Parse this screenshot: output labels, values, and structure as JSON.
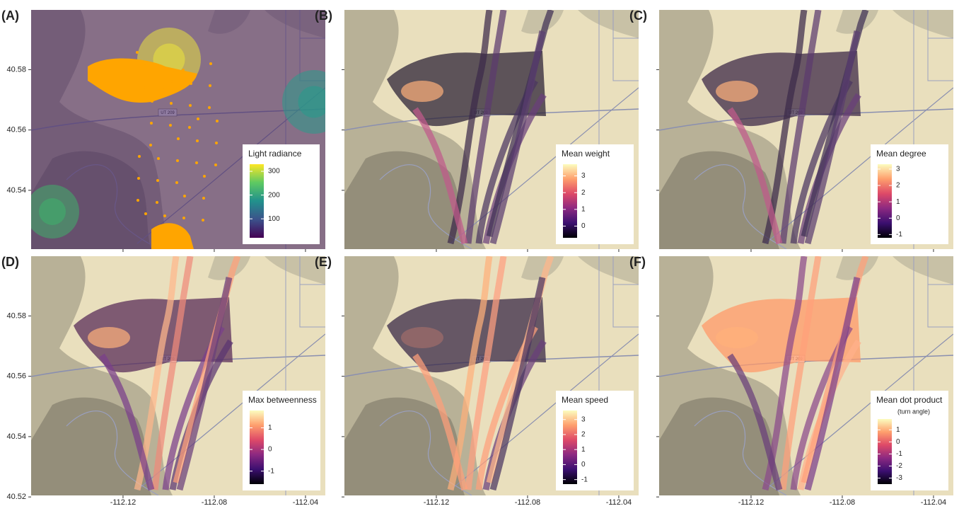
{
  "map": {
    "xlim": [
      -112.1603,
      -112.0313
    ],
    "ylim": [
      40.5205,
      40.5998
    ],
    "xticks": [
      -112.12,
      -112.08,
      -112.04
    ],
    "yticks_top": [
      40.54,
      40.56,
      40.58
    ],
    "yticks_bottom": [
      40.52,
      40.54,
      40.56,
      40.58
    ],
    "road_label": "UT 209"
  },
  "panels": [
    {
      "label": "(A)",
      "legend": {
        "title": "Light radiance",
        "lim": [
          20,
          330
        ],
        "ticks": [
          100,
          200,
          300
        ],
        "colors": [
          "#440154",
          "#3b528b",
          "#21918c",
          "#5ec962",
          "#fde725"
        ]
      }
    },
    {
      "label": "(B)",
      "legend": {
        "title": "Mean weight",
        "lim": [
          -0.7,
          3.7
        ],
        "ticks": [
          0,
          1,
          2,
          3
        ],
        "colors": [
          "#000004",
          "#3b0f70",
          "#8c2981",
          "#de4968",
          "#fe9f6d",
          "#fcfdbf"
        ]
      }
    },
    {
      "label": "(C)",
      "legend": {
        "title": "Mean degree",
        "lim": [
          -1.2,
          3.3
        ],
        "ticks": [
          -1,
          0,
          1,
          2,
          3
        ],
        "colors": [
          "#000004",
          "#3b0f70",
          "#8c2981",
          "#de4968",
          "#fe9f6d",
          "#fcfdbf"
        ]
      }
    },
    {
      "label": "(D)",
      "legend": {
        "title": "Max betweenness",
        "lim": [
          -1.6,
          1.8
        ],
        "ticks": [
          -1,
          0,
          1
        ],
        "colors": [
          "#000004",
          "#3b0f70",
          "#8c2981",
          "#de4968",
          "#fe9f6d",
          "#fcfdbf"
        ]
      }
    },
    {
      "label": "(E)",
      "legend": {
        "title": "Mean speed",
        "lim": [
          -1.3,
          3.6
        ],
        "ticks": [
          -1,
          0,
          1,
          2,
          3
        ],
        "colors": [
          "#000004",
          "#3b0f70",
          "#8c2981",
          "#de4968",
          "#fe9f6d",
          "#fcfdbf"
        ]
      }
    },
    {
      "label": "(F)",
      "legend": {
        "title": "Mean dot product",
        "subtitle": "(turn angle)",
        "lim": [
          -3.5,
          1.9
        ],
        "ticks": [
          -3,
          -2,
          -1,
          0,
          1
        ],
        "colors": [
          "#000004",
          "#3b0f70",
          "#8c2981",
          "#de4968",
          "#fe9f6d",
          "#fcfdbf"
        ]
      }
    }
  ]
}
